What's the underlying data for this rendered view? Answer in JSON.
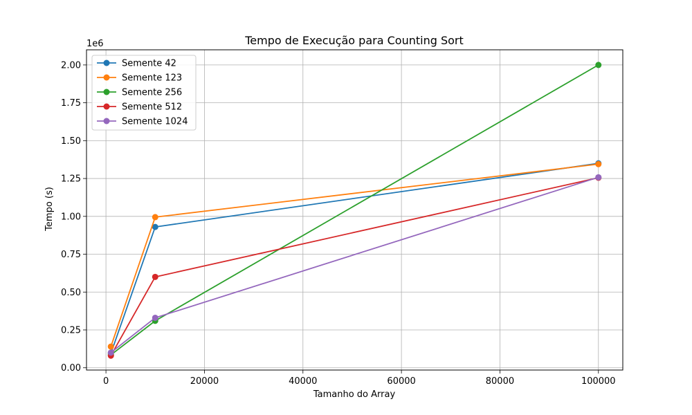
{
  "chart_data": {
    "type": "line",
    "title": "Tempo de Execução para  Counting Sort",
    "xlabel": "Tamanho do Array",
    "ylabel": "Tempo (s)",
    "y_offset_label": "1e6",
    "y_multiplier": 1000000,
    "xlim": [
      -3950,
      104950
    ],
    "ylim": [
      -15000,
      2100000
    ],
    "x_ticks": [
      0,
      20000,
      40000,
      60000,
      80000,
      100000
    ],
    "x_tick_labels": [
      "0",
      "20000",
      "40000",
      "60000",
      "80000",
      "100000"
    ],
    "y_ticks": [
      0,
      250000,
      500000,
      750000,
      1000000,
      1250000,
      1500000,
      1750000,
      2000000
    ],
    "y_tick_labels": [
      "0.00",
      "0.25",
      "0.50",
      "0.75",
      "1.00",
      "1.25",
      "1.50",
      "1.75",
      "2.00"
    ],
    "grid": true,
    "legend_position": "top-left",
    "x": [
      1000,
      10000,
      100000
    ],
    "series": [
      {
        "name": "Semente 42",
        "color": "#1f77b4",
        "values": [
          95000,
          930000,
          1350000
        ]
      },
      {
        "name": "Semente 123",
        "color": "#ff7f0e",
        "values": [
          140000,
          995000,
          1345000
        ]
      },
      {
        "name": "Semente 256",
        "color": "#2ca02c",
        "values": [
          85000,
          310000,
          2000000
        ]
      },
      {
        "name": "Semente 512",
        "color": "#d62728",
        "values": [
          80000,
          600000,
          1255000
        ]
      },
      {
        "name": "Semente 1024",
        "color": "#9467bd",
        "values": [
          100000,
          330000,
          1258000
        ]
      }
    ]
  }
}
